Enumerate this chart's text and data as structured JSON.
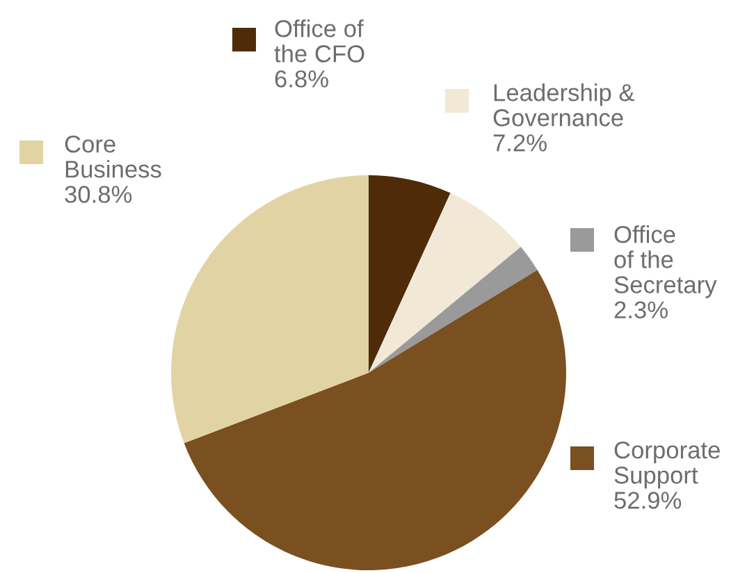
{
  "chart_data": {
    "type": "pie",
    "categories": [
      "Office of\nthe CFO",
      "Leadership &\nGovernance",
      "Office\nof the\nSecretary",
      "Corporate\nSupport",
      "Core\nBusiness"
    ],
    "values": [
      6.8,
      7.2,
      2.3,
      52.9,
      30.8
    ],
    "value_labels": [
      "6.8%",
      "7.2%",
      "2.3%",
      "52.9%",
      "30.8%"
    ],
    "legend": "right",
    "colors": [
      "#4f2b0a",
      "#f1e8d6",
      "#9a9a9b",
      "#7a5020",
      "#e1d3a4"
    ]
  }
}
